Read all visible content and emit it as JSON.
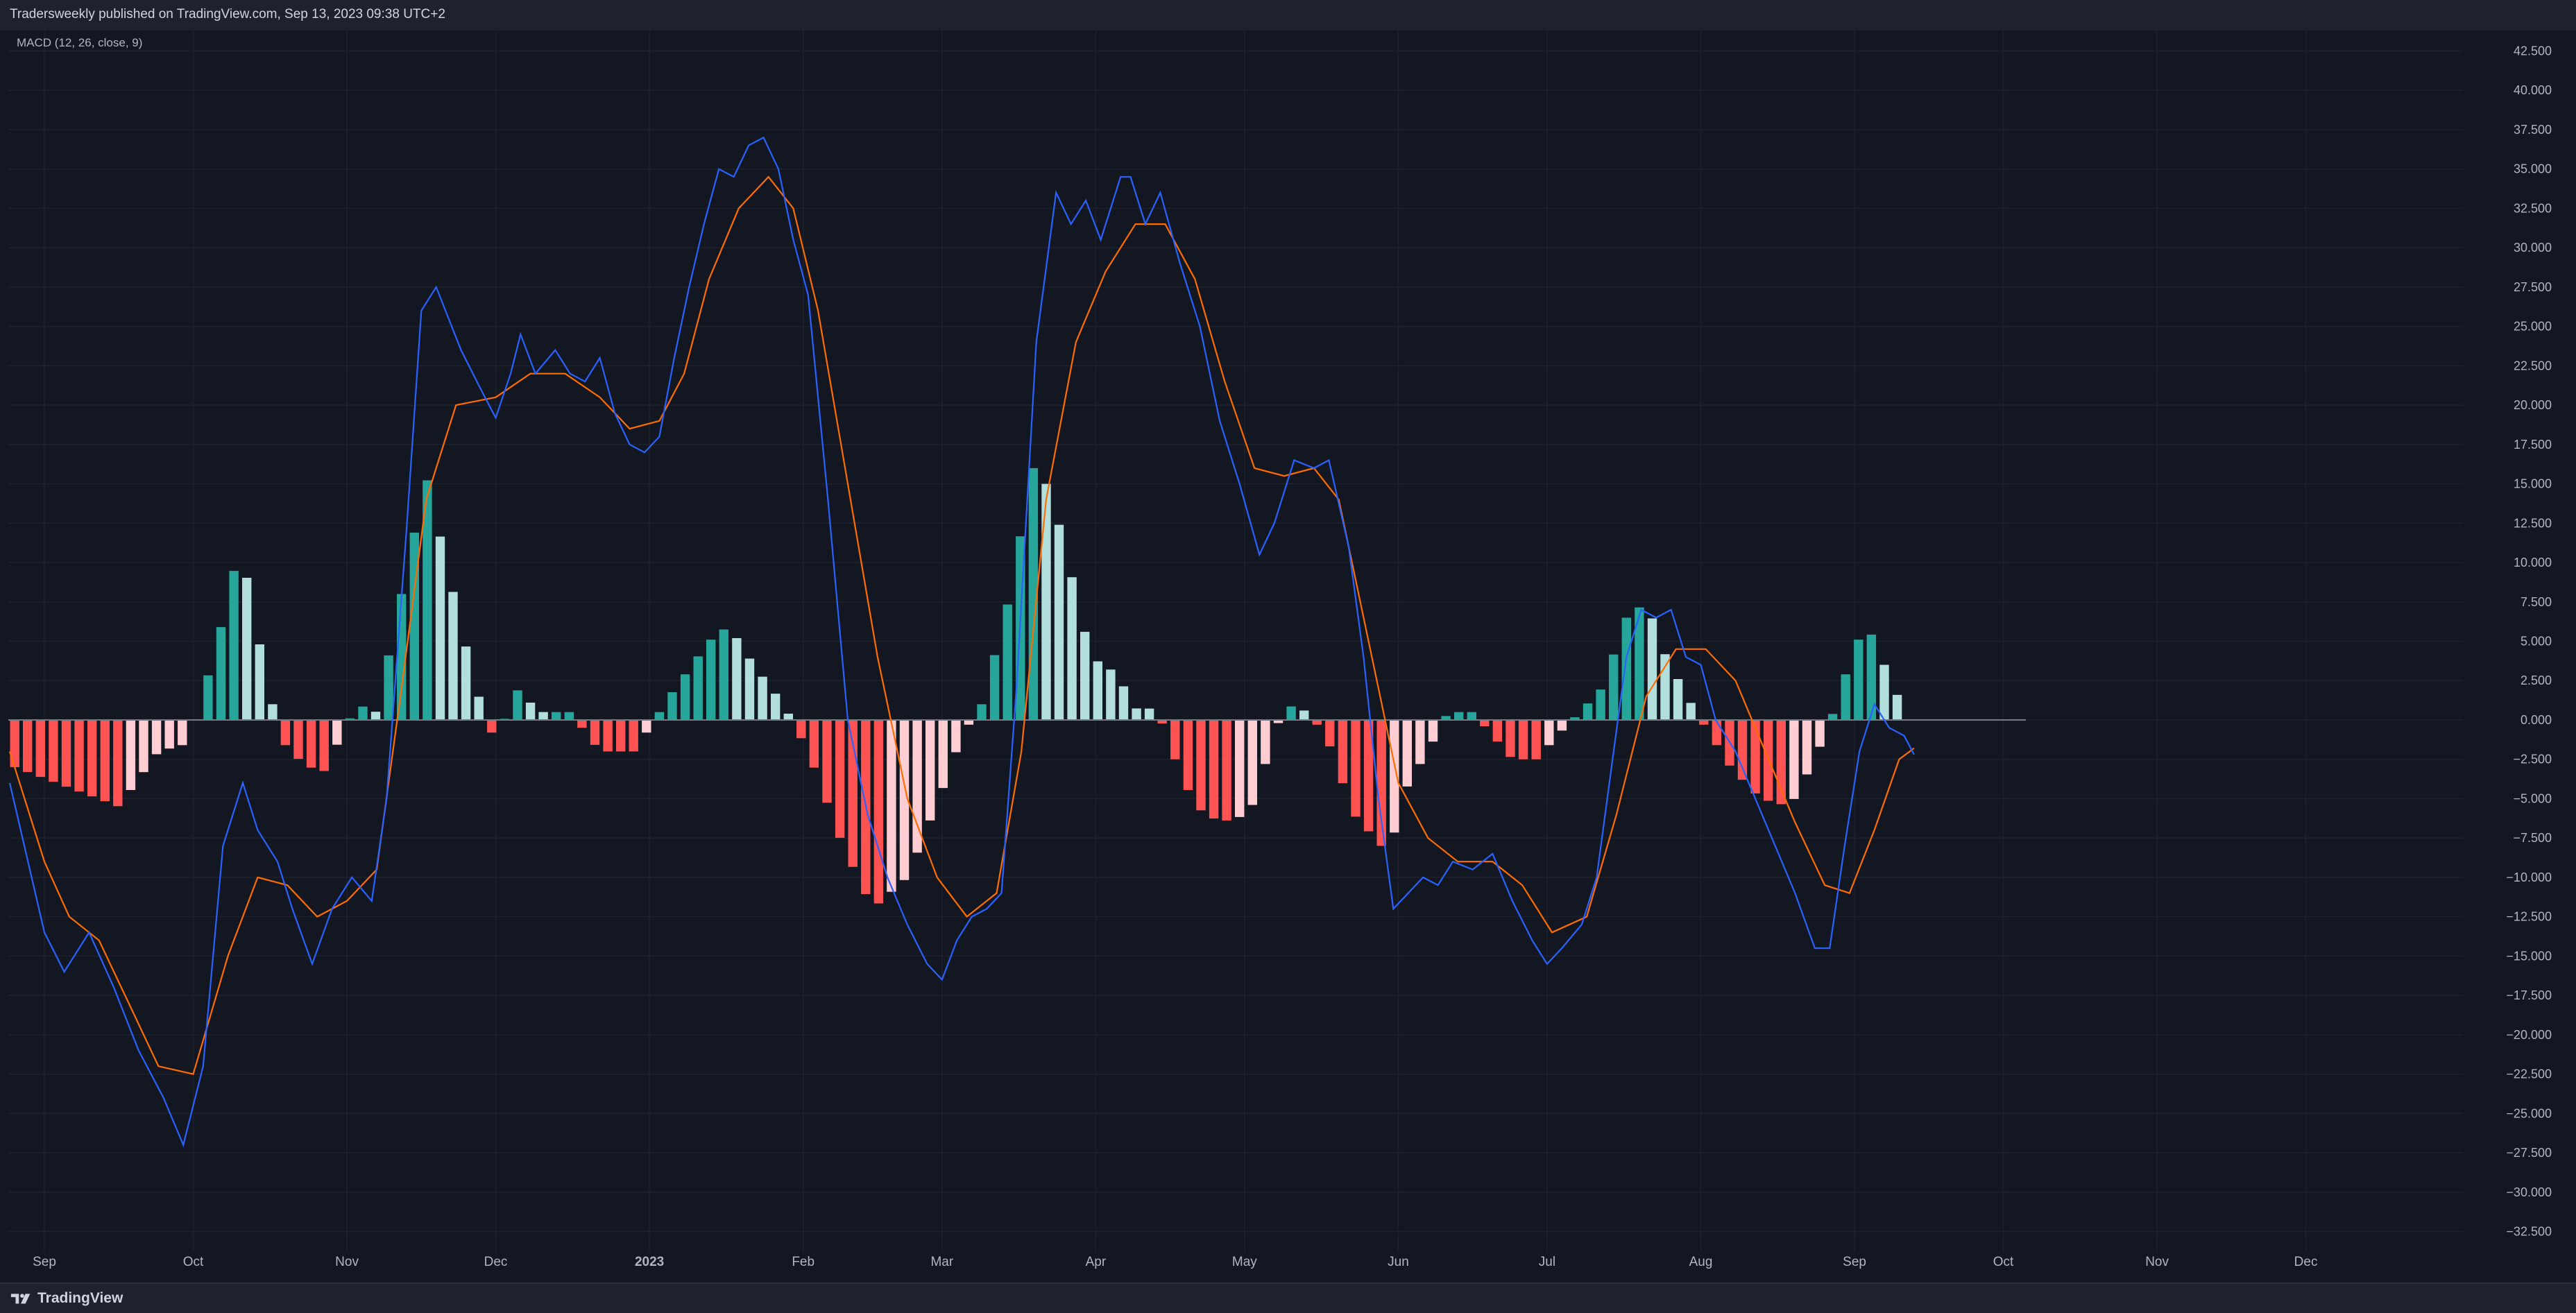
{
  "header": {
    "publish_text": "Tradersweekly published on TradingView.com, Sep 13, 2023 09:38 UTC+2"
  },
  "footer": {
    "brand": "TradingView",
    "logo_icon": "tradingview-logo-icon"
  },
  "colors": {
    "background": "#131722",
    "grid": "#1e222d",
    "macd_line": "#2962ff",
    "signal_line": "#ff6d00",
    "hist_pos_strong": "#26a69a",
    "hist_pos_weak": "#b2dfdb",
    "hist_neg_strong": "#ff5252",
    "hist_neg_weak": "#ffcdd2",
    "text": "#b2b5be"
  },
  "chart_data": {
    "type": "line",
    "indicator_label": "MACD (12, 26, close, 9)",
    "x_axis": {
      "tick_labels": [
        "Sep",
        "Oct",
        "Nov",
        "Dec",
        "2023",
        "Feb",
        "Mar",
        "Apr",
        "May",
        "Jun",
        "Jul",
        "Aug",
        "Sep",
        "Oct",
        "Nov",
        "Dec"
      ],
      "first_bar": "2022-08-25",
      "last_bar": "2023-09-13",
      "range_end": "2023-12-31"
    },
    "y_axis": {
      "tick_labels": [
        "42.500",
        "40.000",
        "37.500",
        "35.000",
        "32.500",
        "30.000",
        "27.500",
        "25.000",
        "22.500",
        "20.000",
        "17.500",
        "15.000",
        "12.500",
        "10.000",
        "7.500",
        "5.000",
        "2.500",
        "0.000",
        "−2.500",
        "−5.000",
        "−7.500",
        "−10.000",
        "−12.500",
        "−15.000",
        "−17.500",
        "−20.000",
        "−22.500",
        "−25.000",
        "−27.500",
        "−30.000",
        "−32.500"
      ],
      "range": [
        -33.8,
        43.8
      ]
    },
    "grid": true,
    "series": [
      {
        "key": "macd",
        "points": [
          [
            "2022-08-25",
            -4
          ],
          [
            "2022-09-01",
            -13.5
          ],
          [
            "2022-09-05",
            -16
          ],
          [
            "2022-09-10",
            -13.5
          ],
          [
            "2022-09-15",
            -17
          ],
          [
            "2022-09-20",
            -21
          ],
          [
            "2022-09-25",
            -24
          ],
          [
            "2022-09-29",
            -27
          ],
          [
            "2022-10-03",
            -22
          ],
          [
            "2022-10-07",
            -8
          ],
          [
            "2022-10-11",
            -4
          ],
          [
            "2022-10-14",
            -7
          ],
          [
            "2022-10-18",
            -9
          ],
          [
            "2022-10-21",
            -12
          ],
          [
            "2022-10-25",
            -15.5
          ],
          [
            "2022-10-29",
            -12
          ],
          [
            "2022-11-02",
            -10
          ],
          [
            "2022-11-06",
            -11.5
          ],
          [
            "2022-11-09",
            -5
          ],
          [
            "2022-11-13",
            12
          ],
          [
            "2022-11-16",
            26
          ],
          [
            "2022-11-19",
            27.5
          ],
          [
            "2022-11-24",
            23.5
          ],
          [
            "2022-11-28",
            21
          ],
          [
            "2022-12-01",
            19.2
          ],
          [
            "2022-12-04",
            22
          ],
          [
            "2022-12-06",
            24.5
          ],
          [
            "2022-12-09",
            22
          ],
          [
            "2022-12-13",
            23.5
          ],
          [
            "2022-12-16",
            22
          ],
          [
            "2022-12-19",
            21.5
          ],
          [
            "2022-12-22",
            23
          ],
          [
            "2022-12-25",
            19.5
          ],
          [
            "2022-12-28",
            17.5
          ],
          [
            "2022-12-31",
            17
          ],
          [
            "2023-01-03",
            18
          ],
          [
            "2023-01-06",
            23
          ],
          [
            "2023-01-09",
            27.5
          ],
          [
            "2023-01-12",
            31.5
          ],
          [
            "2023-01-15",
            35
          ],
          [
            "2023-01-18",
            34.5
          ],
          [
            "2023-01-21",
            36.5
          ],
          [
            "2023-01-24",
            37
          ],
          [
            "2023-01-27",
            35
          ],
          [
            "2023-01-30",
            30.5
          ],
          [
            "2023-02-02",
            27
          ],
          [
            "2023-02-06",
            14
          ],
          [
            "2023-02-10",
            0
          ],
          [
            "2023-02-14",
            -6
          ],
          [
            "2023-02-18",
            -10
          ],
          [
            "2023-02-22",
            -13
          ],
          [
            "2023-02-26",
            -15.5
          ],
          [
            "2023-03-01",
            -16.5
          ],
          [
            "2023-03-04",
            -14
          ],
          [
            "2023-03-07",
            -12.5
          ],
          [
            "2023-03-10",
            -12
          ],
          [
            "2023-03-13",
            -11
          ],
          [
            "2023-03-16",
            2
          ],
          [
            "2023-03-20",
            24
          ],
          [
            "2023-03-24",
            33.5
          ],
          [
            "2023-03-27",
            31.5
          ],
          [
            "2023-03-30",
            33
          ],
          [
            "2023-04-02",
            30.5
          ],
          [
            "2023-04-06",
            34.5
          ],
          [
            "2023-04-08",
            34.5
          ],
          [
            "2023-04-11",
            31.5
          ],
          [
            "2023-04-14",
            33.5
          ],
          [
            "2023-04-18",
            29
          ],
          [
            "2023-04-22",
            25
          ],
          [
            "2023-04-26",
            19
          ],
          [
            "2023-04-30",
            15
          ],
          [
            "2023-05-04",
            10.5
          ],
          [
            "2023-05-07",
            12.5
          ],
          [
            "2023-05-11",
            16.5
          ],
          [
            "2023-05-15",
            16
          ],
          [
            "2023-05-18",
            16.5
          ],
          [
            "2023-05-22",
            11
          ],
          [
            "2023-05-25",
            4
          ],
          [
            "2023-05-28",
            -5
          ],
          [
            "2023-05-31",
            -12
          ],
          [
            "2023-06-03",
            -11
          ],
          [
            "2023-06-06",
            -10
          ],
          [
            "2023-06-09",
            -10.5
          ],
          [
            "2023-06-12",
            -9
          ],
          [
            "2023-06-16",
            -9.5
          ],
          [
            "2023-06-20",
            -8.5
          ],
          [
            "2023-06-24",
            -11.5
          ],
          [
            "2023-06-28",
            -14
          ],
          [
            "2023-07-01",
            -15.5
          ],
          [
            "2023-07-04",
            -14.5
          ],
          [
            "2023-07-08",
            -13
          ],
          [
            "2023-07-11",
            -10
          ],
          [
            "2023-07-14",
            -3
          ],
          [
            "2023-07-17",
            4
          ],
          [
            "2023-07-20",
            7
          ],
          [
            "2023-07-23",
            6.5
          ],
          [
            "2023-07-26",
            7
          ],
          [
            "2023-07-29",
            4
          ],
          [
            "2023-08-01",
            3.5
          ],
          [
            "2023-08-04",
            0
          ],
          [
            "2023-08-08",
            -2
          ],
          [
            "2023-08-12",
            -5
          ],
          [
            "2023-08-16",
            -8
          ],
          [
            "2023-08-20",
            -11
          ],
          [
            "2023-08-24",
            -14.5
          ],
          [
            "2023-08-27",
            -14.5
          ],
          [
            "2023-08-30",
            -8
          ],
          [
            "2023-09-02",
            -2
          ],
          [
            "2023-09-05",
            1
          ],
          [
            "2023-09-08",
            -0.5
          ],
          [
            "2023-09-11",
            -1
          ],
          [
            "2023-09-13",
            -2.2
          ]
        ]
      },
      {
        "key": "signal",
        "points": [
          [
            "2022-08-25",
            -2
          ],
          [
            "2022-09-01",
            -9
          ],
          [
            "2022-09-06",
            -12.5
          ],
          [
            "2022-09-12",
            -14
          ],
          [
            "2022-09-18",
            -18
          ],
          [
            "2022-09-24",
            -22
          ],
          [
            "2022-10-01",
            -22.5
          ],
          [
            "2022-10-08",
            -15
          ],
          [
            "2022-10-14",
            -10
          ],
          [
            "2022-10-20",
            -10.5
          ],
          [
            "2022-10-26",
            -12.5
          ],
          [
            "2022-11-01",
            -11.5
          ],
          [
            "2022-11-07",
            -9.5
          ],
          [
            "2022-11-12",
            2
          ],
          [
            "2022-11-17",
            14
          ],
          [
            "2022-11-23",
            20
          ],
          [
            "2022-12-01",
            20.5
          ],
          [
            "2022-12-08",
            22
          ],
          [
            "2022-12-15",
            22
          ],
          [
            "2022-12-22",
            20.5
          ],
          [
            "2022-12-28",
            18.5
          ],
          [
            "2023-01-03",
            19
          ],
          [
            "2023-01-08",
            22
          ],
          [
            "2023-01-13",
            28
          ],
          [
            "2023-01-19",
            32.5
          ],
          [
            "2023-01-25",
            34.5
          ],
          [
            "2023-01-30",
            32.5
          ],
          [
            "2023-02-04",
            26
          ],
          [
            "2023-02-10",
            15
          ],
          [
            "2023-02-16",
            4
          ],
          [
            "2023-02-22",
            -5
          ],
          [
            "2023-02-28",
            -10
          ],
          [
            "2023-03-06",
            -12.5
          ],
          [
            "2023-03-12",
            -11
          ],
          [
            "2023-03-17",
            -2
          ],
          [
            "2023-03-22",
            14
          ],
          [
            "2023-03-28",
            24
          ],
          [
            "2023-04-03",
            28.5
          ],
          [
            "2023-04-09",
            31.5
          ],
          [
            "2023-04-15",
            31.5
          ],
          [
            "2023-04-21",
            28
          ],
          [
            "2023-04-27",
            21.5
          ],
          [
            "2023-05-03",
            16
          ],
          [
            "2023-05-09",
            15.5
          ],
          [
            "2023-05-15",
            16
          ],
          [
            "2023-05-20",
            14
          ],
          [
            "2023-05-26",
            5
          ],
          [
            "2023-06-01",
            -4
          ],
          [
            "2023-06-07",
            -7.5
          ],
          [
            "2023-06-13",
            -9
          ],
          [
            "2023-06-20",
            -9
          ],
          [
            "2023-06-26",
            -10.5
          ],
          [
            "2023-07-02",
            -13.5
          ],
          [
            "2023-07-09",
            -12.5
          ],
          [
            "2023-07-15",
            -6
          ],
          [
            "2023-07-21",
            1.5
          ],
          [
            "2023-07-27",
            4.5
          ],
          [
            "2023-08-02",
            4.5
          ],
          [
            "2023-08-08",
            2.5
          ],
          [
            "2023-08-14",
            -2
          ],
          [
            "2023-08-20",
            -6.5
          ],
          [
            "2023-08-26",
            -10.5
          ],
          [
            "2023-08-31",
            -11
          ],
          [
            "2023-09-05",
            -7
          ],
          [
            "2023-09-10",
            -2.5
          ],
          [
            "2023-09-13",
            -1.8
          ]
        ]
      },
      {
        "key": "histogram",
        "points": [
          [
            "2022-08-26",
            -3
          ],
          [
            "2022-09-16",
            -5.5
          ],
          [
            "2022-09-24",
            -2
          ],
          [
            "2022-09-30",
            -1.5
          ],
          [
            "2022-10-06",
            5
          ],
          [
            "2022-10-09",
            9.5
          ],
          [
            "2022-10-12",
            9
          ],
          [
            "2022-10-16",
            2
          ],
          [
            "2022-10-20",
            -2
          ],
          [
            "2022-10-27",
            -3.5
          ],
          [
            "2022-11-03",
            1
          ],
          [
            "2022-11-07",
            0.5
          ],
          [
            "2022-11-10",
            5
          ],
          [
            "2022-11-17",
            15.5
          ],
          [
            "2022-11-21",
            10
          ],
          [
            "2022-11-27",
            2
          ],
          [
            "2022-12-01",
            -1.5
          ],
          [
            "2022-12-05",
            2
          ],
          [
            "2022-12-10",
            0.5
          ],
          [
            "2022-12-16",
            0.5
          ],
          [
            "2022-12-22",
            -2
          ],
          [
            "2022-12-29",
            -2
          ],
          [
            "2023-01-05",
            1.5
          ],
          [
            "2023-01-13",
            5
          ],
          [
            "2023-01-17",
            6
          ],
          [
            "2023-01-22",
            3.5
          ],
          [
            "2023-01-28",
            1
          ],
          [
            "2023-02-02",
            -2
          ],
          [
            "2023-02-09",
            -8
          ],
          [
            "2023-02-15",
            -12
          ],
          [
            "2023-02-22",
            -10
          ],
          [
            "2023-03-01",
            -4.5
          ],
          [
            "2023-03-05",
            -1
          ],
          [
            "2023-03-09",
            1
          ],
          [
            "2023-03-14",
            7
          ],
          [
            "2023-03-20",
            17
          ],
          [
            "2023-03-25",
            12
          ],
          [
            "2023-03-31",
            4
          ],
          [
            "2023-04-05",
            3
          ],
          [
            "2023-04-10",
            0.3
          ],
          [
            "2023-04-13",
            1
          ],
          [
            "2023-04-17",
            -2.5
          ],
          [
            "2023-04-21",
            -5.5
          ],
          [
            "2023-04-26",
            -6.5
          ],
          [
            "2023-05-02",
            -6
          ],
          [
            "2023-05-05",
            -3
          ],
          [
            "2023-05-09",
            1
          ],
          [
            "2023-05-14",
            0.5
          ],
          [
            "2023-05-18",
            -1.5
          ],
          [
            "2023-05-23",
            -6
          ],
          [
            "2023-05-30",
            -8.5
          ],
          [
            "2023-06-03",
            -4
          ],
          [
            "2023-06-07",
            -2
          ],
          [
            "2023-06-11",
            0.5
          ],
          [
            "2023-06-16",
            0.5
          ],
          [
            "2023-06-20",
            -1
          ],
          [
            "2023-06-24",
            -2.5
          ],
          [
            "2023-06-29",
            -2.5
          ],
          [
            "2023-07-03",
            -1
          ],
          [
            "2023-07-07",
            0.3
          ],
          [
            "2023-07-12",
            2
          ],
          [
            "2023-07-17",
            6.5
          ],
          [
            "2023-07-21",
            7.5
          ],
          [
            "2023-07-25",
            4
          ],
          [
            "2023-07-31",
            0.5
          ],
          [
            "2023-08-03",
            -1
          ],
          [
            "2023-08-07",
            -3
          ],
          [
            "2023-08-13",
            -5
          ],
          [
            "2023-08-19",
            -5.5
          ],
          [
            "2023-08-24",
            -2.5
          ],
          [
            "2023-08-29",
            1.5
          ],
          [
            "2023-09-01",
            5
          ],
          [
            "2023-09-05",
            5.5
          ],
          [
            "2023-09-08",
            2.5
          ],
          [
            "2023-09-11",
            0.8
          ],
          [
            "2023-09-13",
            -0.6
          ]
        ]
      }
    ]
  }
}
